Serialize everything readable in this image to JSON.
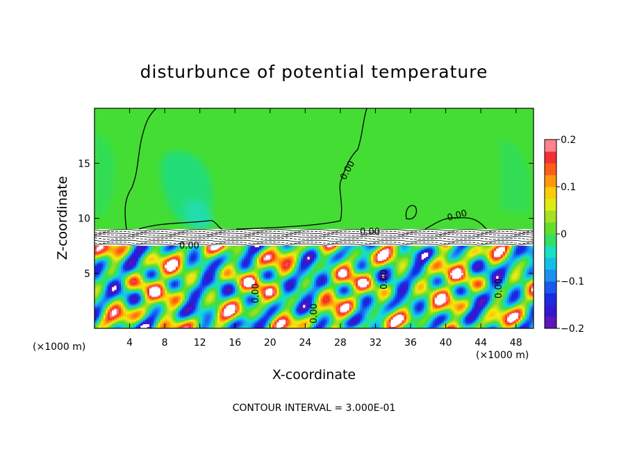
{
  "chart_data": {
    "type": "heatmap",
    "title": "disturbunce of potential temperature",
    "xlabel": "X-coordinate",
    "ylabel": "Z-coordinate",
    "x_unit_note": "(×1000 m)",
    "y_unit_note": "(×1000 m)",
    "footer": "CONTOUR INTERVAL = 3.000E-01",
    "xlim": [
      0,
      50
    ],
    "ylim": [
      0,
      20
    ],
    "x_ticks": [
      4,
      8,
      12,
      16,
      20,
      24,
      28,
      32,
      36,
      40,
      44,
      48
    ],
    "y_ticks": [
      5,
      10,
      15
    ],
    "colorbar": {
      "range": [
        -0.2,
        0.2
      ],
      "tick_values": [
        0.2,
        0.1,
        0,
        -0.1,
        -0.2
      ],
      "tick_labels": [
        "0.2",
        "0.1",
        "0",
        "−0.1",
        "−0.2"
      ]
    },
    "contour_labels": [
      "0.00",
      "0.00",
      "0.00",
      "0.00",
      "0.00",
      "0.00",
      "0.00",
      "0.00"
    ],
    "regions": {
      "upper_layer_mean": 0.0,
      "upper_layer_blob_min": -0.05,
      "inversion_height_km": 8.5,
      "lower_layer_range": [
        -0.2,
        0.2
      ]
    },
    "colors": {
      "positive_max": "#ff9fa8",
      "zero": "#44dd33",
      "negative_max": "#7a1ab0"
    }
  }
}
